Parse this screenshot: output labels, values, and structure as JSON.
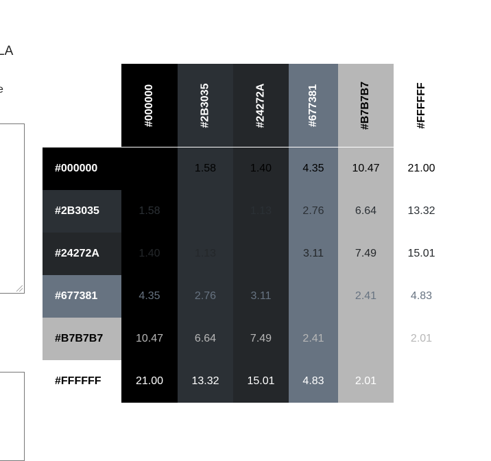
{
  "side": {
    "text_1": "LA",
    "text_2": "e"
  },
  "colors": [
    {
      "hex": "#000000",
      "label": "#000000",
      "text": "#ffffff"
    },
    {
      "hex": "#2B3035",
      "label": "#2B3035",
      "text": "#ffffff"
    },
    {
      "hex": "#24272A",
      "label": "#24272A",
      "text": "#ffffff"
    },
    {
      "hex": "#677381",
      "label": "#677381",
      "text": "#ffffff"
    },
    {
      "hex": "#B7B7B7",
      "label": "#B7B7B7",
      "text": "#000000"
    },
    {
      "hex": "#FFFFFF",
      "label": "#FFFFFF",
      "text": "#000000"
    }
  ],
  "ratios": [
    [
      "",
      "1.58",
      "1.40",
      "4.35",
      "10.47",
      "21.00"
    ],
    [
      "1.58",
      "",
      "1.13",
      "2.76",
      "6.64",
      "13.32"
    ],
    [
      "1.40",
      "1.13",
      "",
      "3.11",
      "7.49",
      "15.01"
    ],
    [
      "4.35",
      "2.76",
      "3.11",
      "",
      "2.41",
      "4.83"
    ],
    [
      "10.47",
      "6.64",
      "7.49",
      "2.41",
      "",
      "2.01"
    ],
    [
      "21.00",
      "13.32",
      "15.01",
      "4.83",
      "2.01",
      ""
    ]
  ]
}
